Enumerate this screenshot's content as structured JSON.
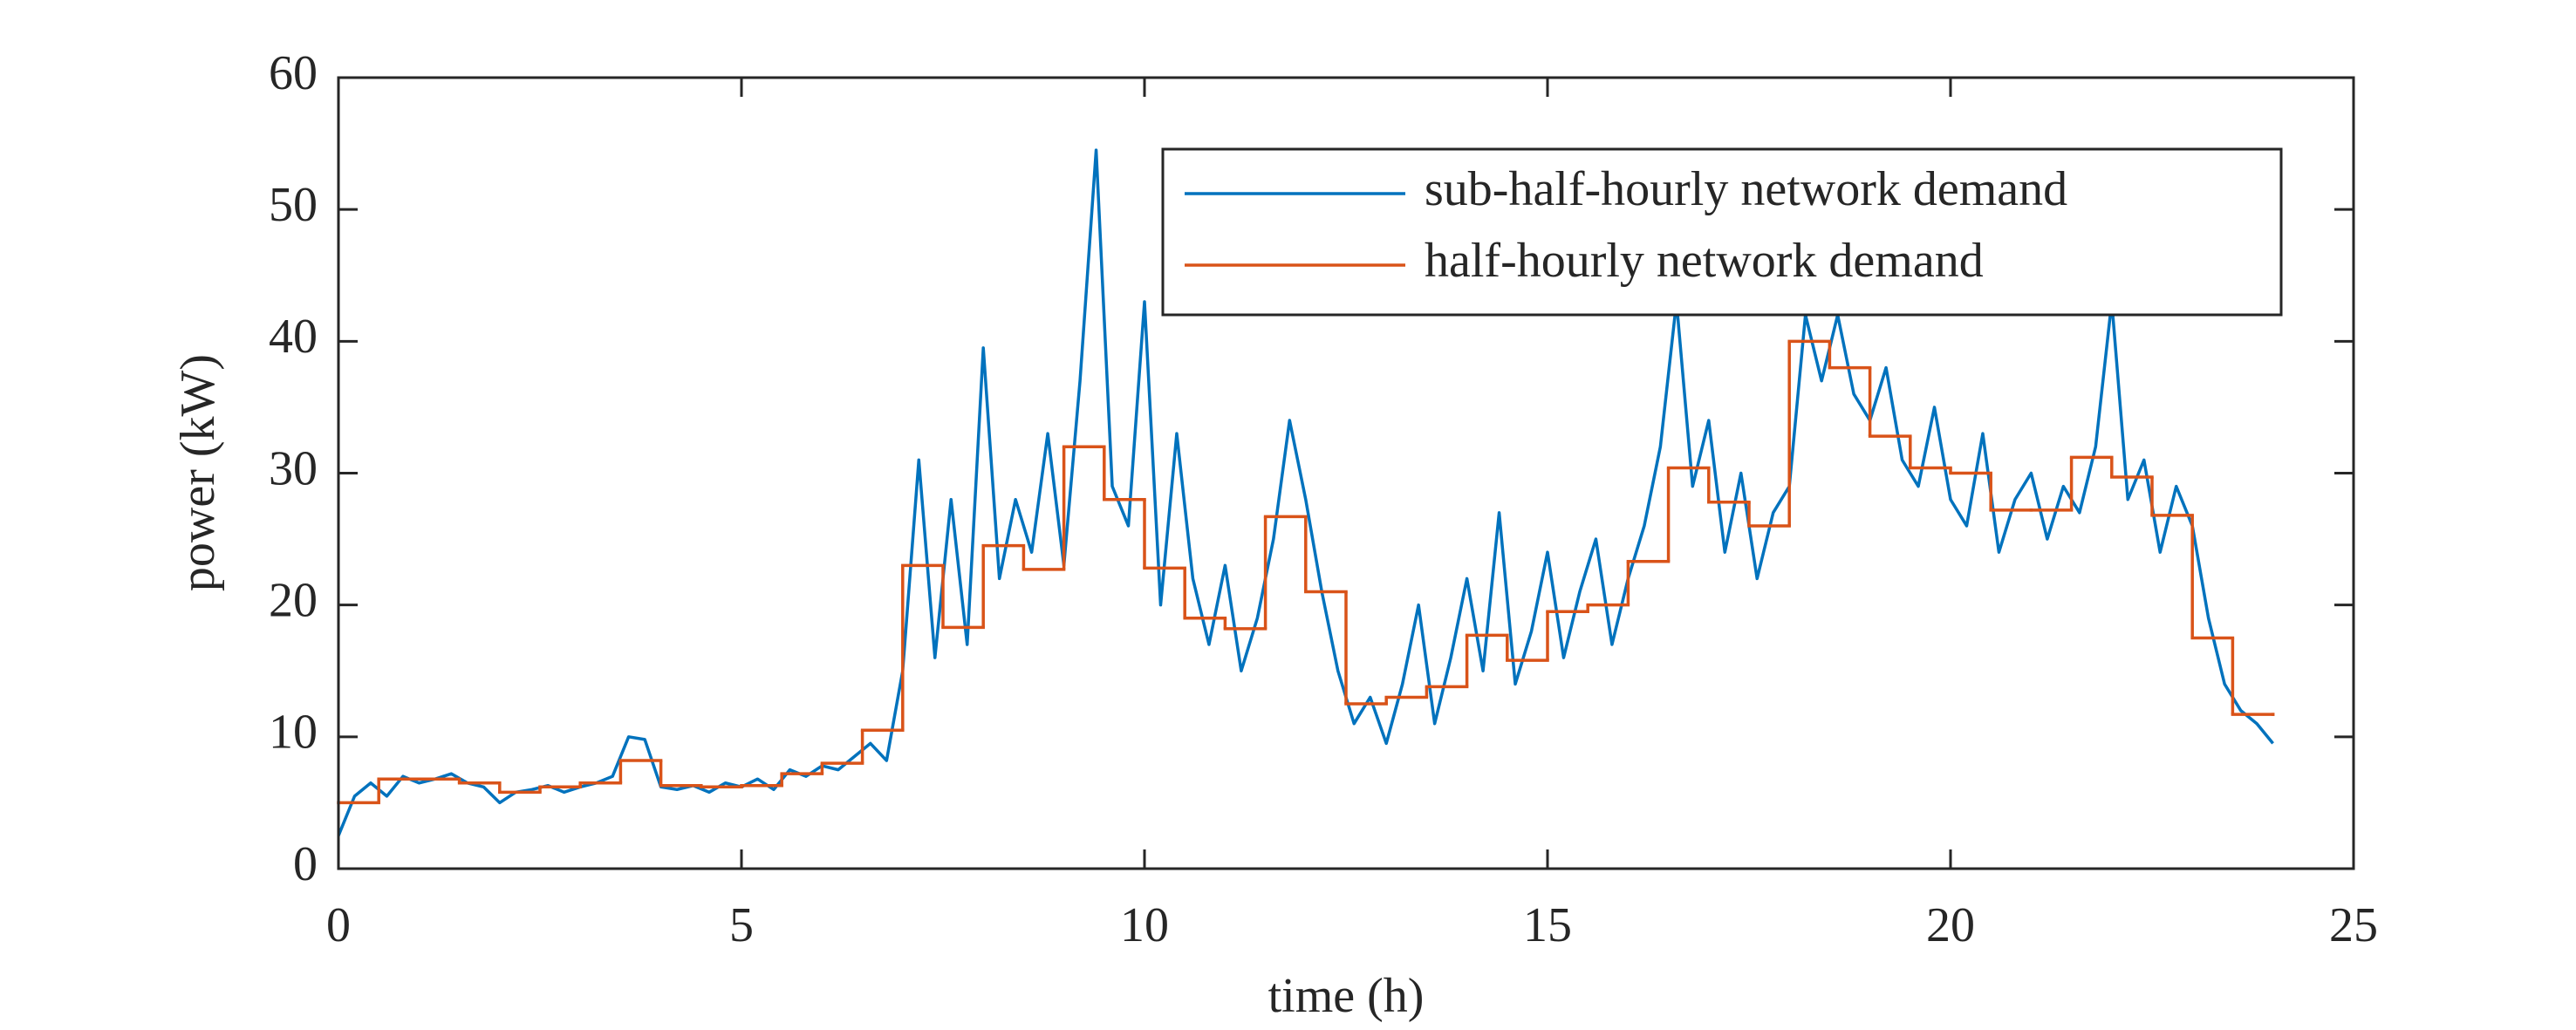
{
  "chart_data": {
    "type": "line",
    "xlabel": "time (h)",
    "ylabel": "power (kW)",
    "xlim": [
      0,
      25
    ],
    "xticks": [
      0,
      5,
      10,
      15,
      20,
      25
    ],
    "ylim": [
      0,
      60
    ],
    "yticks": [
      0,
      10,
      20,
      30,
      40,
      50,
      60
    ],
    "legend": "upper right",
    "series": [
      {
        "name": "sub-half-hourly network demand",
        "color": "#0072bd",
        "x": [
          0,
          0.2,
          0.4,
          0.6,
          0.8,
          1,
          1.2,
          1.4,
          1.6,
          1.8,
          2,
          2.2,
          2.4,
          2.6,
          2.8,
          3,
          3.2,
          3.4,
          3.6,
          3.8,
          4,
          4.2,
          4.4,
          4.6,
          4.8,
          5,
          5.2,
          5.4,
          5.6,
          5.8,
          6,
          6.2,
          6.4,
          6.6,
          6.8,
          7,
          7.2,
          7.4,
          7.6,
          7.8,
          8,
          8.2,
          8.4,
          8.6,
          8.8,
          9,
          9.2,
          9.4,
          9.6,
          9.8,
          10,
          10.2,
          10.4,
          10.6,
          10.8,
          11,
          11.2,
          11.4,
          11.6,
          11.8,
          12,
          12.2,
          12.4,
          12.6,
          12.8,
          13,
          13.2,
          13.4,
          13.6,
          13.8,
          14,
          14.2,
          14.4,
          14.6,
          14.8,
          15,
          15.2,
          15.4,
          15.6,
          15.8,
          16,
          16.2,
          16.4,
          16.6,
          16.8,
          17,
          17.2,
          17.4,
          17.6,
          17.8,
          18,
          18.2,
          18.4,
          18.6,
          18.8,
          19,
          19.2,
          19.4,
          19.6,
          19.8,
          20,
          20.2,
          20.4,
          20.6,
          20.8,
          21,
          21.2,
          21.4,
          21.6,
          21.8,
          22,
          22.2,
          22.4,
          22.6,
          22.8,
          23,
          23.2,
          23.4,
          23.6,
          23.8,
          24
        ],
        "values": [
          2.5,
          5.5,
          6.5,
          5.5,
          7,
          6.5,
          6.8,
          7.2,
          6.5,
          6.2,
          5,
          5.8,
          6,
          6.3,
          5.8,
          6.2,
          6.5,
          7,
          10,
          9.8,
          6.2,
          6,
          6.3,
          5.8,
          6.5,
          6.2,
          6.8,
          6,
          7.5,
          7,
          7.8,
          7.5,
          8.5,
          9.5,
          8.2,
          15,
          31,
          16,
          28,
          17,
          39.5,
          22,
          28,
          24,
          33,
          23,
          37,
          54.5,
          29,
          26,
          43,
          20,
          33,
          22,
          17,
          23,
          15,
          19,
          25,
          34,
          28,
          21,
          15,
          11,
          13,
          9.5,
          14,
          20,
          11,
          16,
          22,
          15,
          27,
          14,
          18,
          24,
          16,
          21,
          25,
          17,
          22,
          26,
          32,
          43,
          29,
          34,
          24,
          30,
          22,
          27,
          29,
          42,
          37,
          42,
          36,
          34,
          38,
          31,
          29,
          35,
          28,
          26,
          33,
          24,
          28,
          30,
          25,
          29,
          27,
          32,
          43,
          28,
          31,
          24,
          29,
          26,
          19,
          14,
          12,
          11,
          9.5
        ]
      },
      {
        "name": "half-hourly network demand",
        "color": "#d95319",
        "step": "post",
        "x": [
          0,
          0.5,
          1,
          1.5,
          2,
          2.5,
          3,
          3.5,
          4,
          4.5,
          5,
          5.5,
          6,
          6.5,
          7,
          7.5,
          8,
          8.5,
          9,
          9.5,
          10,
          10.5,
          11,
          11.5,
          12,
          12.5,
          13,
          13.5,
          14,
          14.5,
          15,
          15.5,
          16,
          16.5,
          17,
          17.5,
          18,
          18.5,
          19,
          19.5,
          20,
          20.5,
          21,
          21.5,
          22,
          22.5,
          23,
          23.5,
          24
        ],
        "values": [
          5,
          6.8,
          6.8,
          6.5,
          5.8,
          6.2,
          6.5,
          8.2,
          6.3,
          6.2,
          6.3,
          7.2,
          8,
          10.5,
          23,
          18.3,
          24.5,
          22.7,
          32,
          28,
          22.8,
          19,
          18.2,
          26.7,
          21,
          12.5,
          13,
          13.8,
          17.7,
          15.8,
          19.5,
          20,
          23.3,
          30.4,
          27.8,
          26,
          40,
          38,
          32.8,
          30.4,
          30,
          27.2,
          27.2,
          31.2,
          29.7,
          26.8,
          17.5,
          11.7,
          11.7
        ]
      }
    ]
  }
}
